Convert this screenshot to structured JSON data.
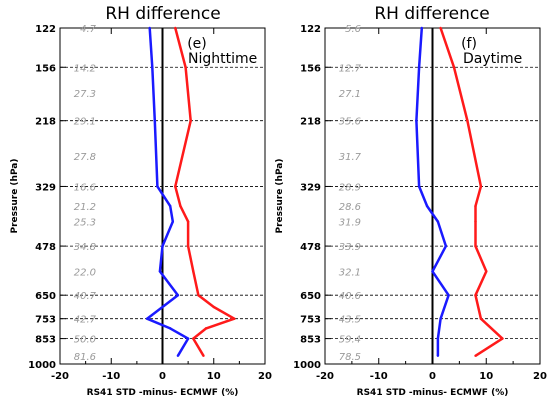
{
  "chart_data": [
    {
      "type": "line",
      "title": "RH difference",
      "panel_label": "(e)",
      "annotation": "Nighttime",
      "xlabel": "RS41 STD -minus- ECMWF (%)",
      "ylabel": "Pressure (hPa)",
      "xlim": [
        -20,
        20
      ],
      "xticks": [
        "-20",
        "-10",
        "0",
        "10",
        "20"
      ],
      "pressure_ticks": [
        122,
        156,
        218,
        329,
        478,
        650,
        753,
        853,
        1000
      ],
      "coverage_labels": [
        {
          "p": 122,
          "text": "4.7"
        },
        {
          "p": 156,
          "text": "14.2"
        },
        {
          "p": 183,
          "text": "27.3"
        },
        {
          "p": 218,
          "text": "29.1"
        },
        {
          "p": 272,
          "text": "27.8"
        },
        {
          "p": 329,
          "text": "16.6"
        },
        {
          "p": 372,
          "text": "21.2"
        },
        {
          "p": 410,
          "text": "25.3"
        },
        {
          "p": 478,
          "text": "34.8"
        },
        {
          "p": 560,
          "text": "22.0"
        },
        {
          "p": 650,
          "text": "40.7"
        },
        {
          "p": 753,
          "text": "42.7"
        },
        {
          "p": 853,
          "text": "50.0"
        },
        {
          "p": 950,
          "text": "81.6"
        }
      ],
      "series": [
        {
          "color": "#1a1aff",
          "pressure": [
            122,
            156,
            218,
            329,
            372,
            410,
            478,
            560,
            650,
            700,
            753,
            800,
            853,
            950
          ],
          "values": [
            -2.5,
            -2.0,
            -1.5,
            -1.0,
            1.5,
            2.0,
            0.0,
            -0.5,
            3.0,
            0.0,
            -3.0,
            1.5,
            5.0,
            3.0
          ]
        },
        {
          "color": "#ff1a1a",
          "pressure": [
            122,
            156,
            218,
            329,
            372,
            410,
            478,
            560,
            650,
            700,
            753,
            800,
            853,
            950
          ],
          "values": [
            2.5,
            4.5,
            5.5,
            2.5,
            3.5,
            5.0,
            5.0,
            6.0,
            7.0,
            10.0,
            14.0,
            8.5,
            6.0,
            8.0
          ]
        }
      ]
    },
    {
      "type": "line",
      "title": "RH difference",
      "panel_label": "(f)",
      "annotation": "Daytime",
      "xlabel": "RS41 STD -minus- ECMWF (%)",
      "ylabel": "Pressure (hPa)",
      "xlim": [
        -20,
        20
      ],
      "xticks": [
        "-20",
        "-10",
        "0",
        "10",
        "20"
      ],
      "pressure_ticks": [
        122,
        156,
        218,
        329,
        478,
        650,
        753,
        853,
        1000
      ],
      "coverage_labels": [
        {
          "p": 122,
          "text": "5.6"
        },
        {
          "p": 156,
          "text": "12.7"
        },
        {
          "p": 183,
          "text": "27.1"
        },
        {
          "p": 218,
          "text": "35.6"
        },
        {
          "p": 272,
          "text": "31.7"
        },
        {
          "p": 329,
          "text": "28.9"
        },
        {
          "p": 372,
          "text": "28.6"
        },
        {
          "p": 410,
          "text": "31.9"
        },
        {
          "p": 478,
          "text": "33.9"
        },
        {
          "p": 560,
          "text": "32.1"
        },
        {
          "p": 650,
          "text": "40.6"
        },
        {
          "p": 753,
          "text": "43.5"
        },
        {
          "p": 853,
          "text": "59.4"
        },
        {
          "p": 950,
          "text": "78.5"
        }
      ],
      "series": [
        {
          "color": "#1a1aff",
          "pressure": [
            122,
            156,
            218,
            329,
            372,
            410,
            478,
            560,
            650,
            753,
            853,
            950
          ],
          "values": [
            -2.0,
            -2.5,
            -3.0,
            -2.5,
            -1.0,
            1.0,
            2.5,
            0.0,
            3.0,
            1.5,
            1.0,
            1.0
          ]
        },
        {
          "color": "#ff1a1a",
          "pressure": [
            122,
            156,
            218,
            329,
            372,
            410,
            478,
            560,
            650,
            753,
            853,
            950
          ],
          "values": [
            1.5,
            4.0,
            6.5,
            9.0,
            8.0,
            8.0,
            8.0,
            10.0,
            8.0,
            9.0,
            13.0,
            8.0
          ]
        }
      ]
    }
  ]
}
